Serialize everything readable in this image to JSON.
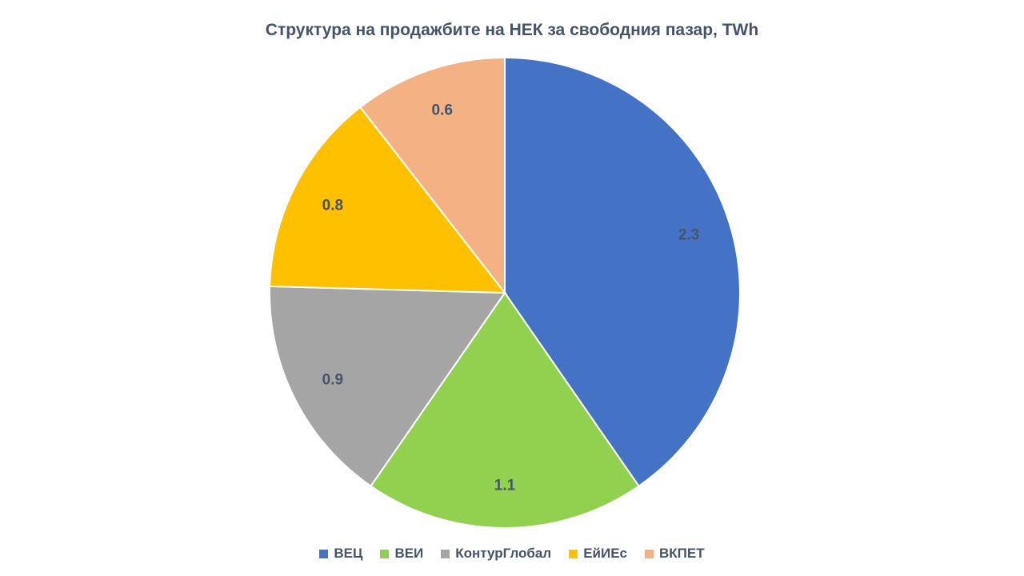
{
  "chart_data": {
    "type": "pie",
    "title": "Структура на продажбите на НЕК за свободния пазар, TWh",
    "categories": [
      "ВЕЦ",
      "ВЕИ",
      "КонтурГлобал",
      "ЕйИЕс",
      "ВКПЕТ"
    ],
    "values": [
      2.3,
      1.1,
      0.9,
      0.8,
      0.6
    ],
    "data_labels": [
      "2.3",
      "1.1",
      "0.9",
      "0.8",
      "0.6"
    ],
    "colors": [
      "#4472c4",
      "#92d050",
      "#a5a5a5",
      "#ffc000",
      "#f4b183"
    ],
    "start_angle": "12 o'clock",
    "direction": "clockwise",
    "legend_position": "bottom"
  }
}
